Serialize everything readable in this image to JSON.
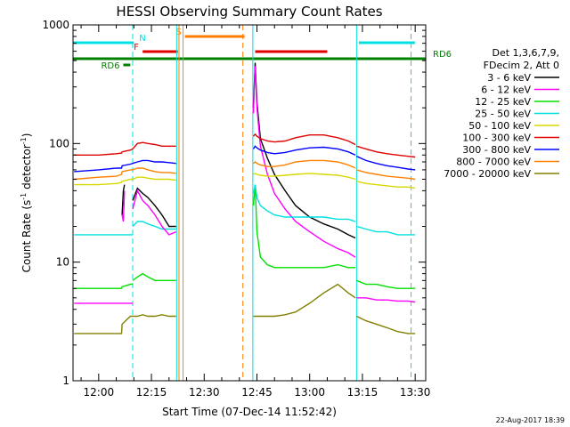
{
  "chart_data": {
    "type": "line",
    "title": "HESSI Observing Summary Count Rates",
    "xlabel": "Start Time (07-Dec-14 11:52:42)",
    "ylabel": "Count Rate (s⁻¹ detector⁻¹)",
    "ylabel_parts": {
      "main": "Count Rate (s",
      "exp1": "-1",
      "mid": " detector",
      "exp2": "-1",
      "close": ")"
    },
    "y_scale": "log",
    "ylim": [
      1,
      1000
    ],
    "xlim": [
      "11:52:42",
      "13:33:00"
    ],
    "x_ticks": [
      "12:00",
      "12:15",
      "12:30",
      "12:45",
      "13:00",
      "13:15",
      "13:30"
    ],
    "y_ticks": [
      "1",
      "10",
      "100",
      "1000"
    ],
    "legend_header": [
      "Det 1,3,6,7,9,",
      "FDecim 2, Att 0"
    ],
    "legend_placement": "right",
    "footer": "22-Aug-2017 18:39",
    "series": [
      {
        "name": "3 - 6 keV",
        "color": "#000000"
      },
      {
        "name": "6 - 12 keV",
        "color": "#ff00ff"
      },
      {
        "name": "12 - 25 keV",
        "color": "#00e000"
      },
      {
        "name": "25 - 50 keV",
        "color": "#00e0e0"
      },
      {
        "name": "50 - 100 keV",
        "color": "#d8d800"
      },
      {
        "name": "100 - 300 keV",
        "color": "#e00000"
      },
      {
        "name": "300 - 800 keV",
        "color": "#0000ff"
      },
      {
        "name": "800 - 7000 keV",
        "color": "#ff8000"
      },
      {
        "name": "7000 - 20000 keV",
        "color": "#808000"
      }
    ],
    "flag_bars": [
      {
        "label": "N",
        "color": "#00e0e0",
        "segments": [
          [
            "11:52:42",
            "12:10:00"
          ],
          [
            "13:14:00",
            "13:30:00"
          ]
        ]
      },
      {
        "label": "F",
        "color": "#e00000",
        "segments": [
          [
            "12:12:30",
            "12:22:30"
          ],
          [
            "12:44:30",
            "13:05:00"
          ]
        ]
      },
      {
        "label": "S",
        "color": "#ff8000",
        "segments": [
          [
            "12:24:30",
            "12:41:30"
          ]
        ]
      },
      {
        "label": "RD6",
        "color": "#008000",
        "segments": [
          [
            "11:52:42",
            "13:33:00"
          ]
        ]
      },
      {
        "label": "RD6",
        "color": "#008000",
        "segments": [
          [
            "12:07:00",
            "12:09:00"
          ]
        ]
      }
    ],
    "boundaries": [
      {
        "time": "12:09:40",
        "color": "#00e0e0",
        "style": "dashed"
      },
      {
        "time": "12:22:10",
        "color": "#00e0e0",
        "style": "solid"
      },
      {
        "time": "12:22:50",
        "color": "#ff8000",
        "style": "solid"
      },
      {
        "time": "12:24:00",
        "color": "#ff8000",
        "style": "solid"
      },
      {
        "time": "12:41:00",
        "color": "#ff8000",
        "style": "dashed"
      },
      {
        "time": "12:43:50",
        "color": "#00e0e0",
        "style": "solid"
      },
      {
        "time": "13:13:20",
        "color": "#00e0e0",
        "style": "solid"
      },
      {
        "time": "13:28:50",
        "color": "#00e0e0",
        "style": "dashed"
      }
    ],
    "segments": [
      {
        "x": [
          "11:53:00",
          "12:00:00",
          "12:05:00",
          "12:06:30",
          "12:06:40",
          "12:09:00",
          "12:09:40"
        ],
        "values": {
          "800 - 7000 keV": [
            50,
            52,
            53,
            55,
            58,
            60,
            60
          ],
          "50 - 100 keV": [
            45,
            45,
            46,
            47,
            48,
            50,
            50
          ],
          "300 - 800 keV": [
            58,
            60,
            62,
            62,
            65,
            67,
            68
          ],
          "100 - 300 keV": [
            80,
            80,
            82,
            83,
            85,
            88,
            90
          ],
          "25 - 50 keV": [
            17,
            17,
            17,
            17,
            17,
            17,
            17
          ],
          "12 - 25 keV": [
            6,
            6,
            6,
            6,
            6.2,
            6.5,
            6.5
          ],
          "6 - 12 keV": [
            4.5,
            4.5,
            4.5,
            4.5,
            4.5,
            4.5,
            4.5
          ],
          "7000 - 20000 keV": [
            2.5,
            2.5,
            2.5,
            2.5,
            3.0,
            3.5,
            3.5
          ]
        }
      },
      {
        "x": [
          "12:06:40",
          "12:07:00",
          "12:07:20"
        ],
        "values": {
          "3 - 6 keV": [
            25,
            40,
            45
          ],
          "6 - 12 keV": [
            25,
            22,
            40
          ]
        }
      },
      {
        "x": [
          "12:09:40",
          "12:11:00",
          "12:12:30",
          "12:14:00",
          "12:16:00",
          "12:18:00",
          "12:20:00",
          "12:22:00"
        ],
        "values": {
          "800 - 7000 keV": [
            60,
            62,
            62,
            60,
            58,
            57,
            57,
            56
          ],
          "50 - 100 keV": [
            50,
            52,
            52,
            51,
            50,
            50,
            50,
            49
          ],
          "300 - 800 keV": [
            68,
            70,
            72,
            72,
            70,
            70,
            69,
            68
          ],
          "100 - 300 keV": [
            90,
            100,
            102,
            100,
            98,
            95,
            95,
            95
          ],
          "25 - 50 keV": [
            20,
            22,
            22,
            21,
            20,
            19,
            19,
            19
          ],
          "3 - 6 keV": [
            33,
            42,
            38,
            35,
            30,
            25,
            20,
            20
          ],
          "6 - 12 keV": [
            28,
            40,
            33,
            30,
            25,
            20,
            17,
            18
          ],
          "12 - 25 keV": [
            7,
            7.5,
            8,
            7.5,
            7,
            7,
            7,
            7
          ],
          "7000 - 20000 keV": [
            3.5,
            3.5,
            3.6,
            3.5,
            3.5,
            3.6,
            3.5,
            3.5
          ]
        }
      },
      {
        "x": [
          "12:44:00",
          "12:44:30",
          "12:45:00",
          "12:46:00",
          "12:48:00",
          "12:50:00",
          "12:53:00",
          "12:56:00",
          "13:00:00",
          "13:04:00",
          "13:08:00",
          "13:11:00",
          "13:13:00"
        ],
        "values": {
          "3 - 6 keV": [
            200,
            480,
            220,
            110,
            75,
            55,
            40,
            30,
            24,
            21,
            19,
            17,
            16
          ],
          "6 - 12 keV": [
            180,
            450,
            200,
            95,
            55,
            38,
            28,
            22,
            18,
            15,
            13,
            12,
            11
          ],
          "12 - 25 keV": [
            30,
            45,
            18,
            11,
            9.5,
            9,
            9,
            9,
            9,
            9,
            9.5,
            9,
            9
          ],
          "25 - 50 keV": [
            38,
            45,
            35,
            30,
            27,
            25,
            24,
            24,
            24,
            24,
            23,
            23,
            22
          ],
          "50 - 100 keV": [
            55,
            56,
            55,
            54,
            53,
            53,
            54,
            55,
            56,
            55,
            54,
            52,
            50
          ],
          "800 - 7000 keV": [
            68,
            70,
            68,
            66,
            64,
            64,
            66,
            70,
            72,
            72,
            70,
            66,
            62
          ],
          "300 - 800 keV": [
            90,
            95,
            92,
            88,
            84,
            82,
            84,
            88,
            92,
            93,
            90,
            85,
            80
          ],
          "100 - 300 keV": [
            115,
            120,
            115,
            110,
            105,
            103,
            105,
            112,
            118,
            118,
            112,
            105,
            98
          ],
          "7000 - 20000 keV": [
            3.5,
            3.5,
            3.5,
            3.5,
            3.5,
            3.5,
            3.6,
            3.8,
            4.5,
            5.5,
            6.5,
            5.5,
            5
          ]
        }
      },
      {
        "x": [
          "13:13:20",
          "13:16:00",
          "13:19:00",
          "13:22:00",
          "13:25:00",
          "13:28:00",
          "13:30:00"
        ],
        "values": {
          "100 - 300 keV": [
            95,
            90,
            85,
            82,
            80,
            78,
            77
          ],
          "300 - 800 keV": [
            78,
            72,
            68,
            65,
            63,
            61,
            60
          ],
          "800 - 7000 keV": [
            60,
            57,
            55,
            53,
            52,
            51,
            50
          ],
          "50 - 100 keV": [
            48,
            46,
            45,
            44,
            43,
            43,
            42
          ],
          "25 - 50 keV": [
            20,
            19,
            18,
            18,
            17,
            17,
            17
          ],
          "12 - 25 keV": [
            7,
            6.5,
            6.5,
            6.2,
            6,
            6,
            6
          ],
          "6 - 12 keV": [
            5,
            5,
            4.8,
            4.8,
            4.7,
            4.7,
            4.6
          ],
          "7000 - 20000 keV": [
            3.5,
            3.2,
            3,
            2.8,
            2.6,
            2.5,
            2.5
          ]
        }
      }
    ]
  }
}
